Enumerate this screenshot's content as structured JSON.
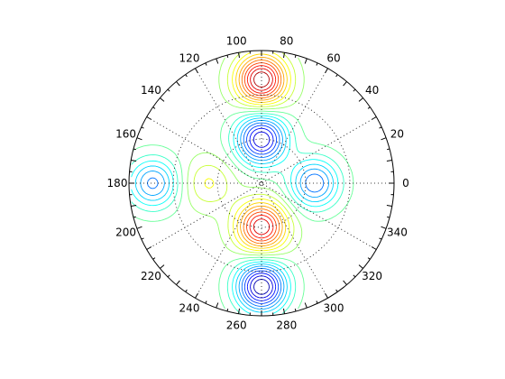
{
  "chart_data": {
    "type": "polar-contour",
    "title": "",
    "angle_unit": "degrees",
    "angle_labels": [
      "0",
      "20",
      "40",
      "60",
      "80",
      "100",
      "120",
      "140",
      "160",
      "180",
      "200",
      "220",
      "240",
      "260",
      "280",
      "300",
      "320",
      "340"
    ],
    "angle_values": [
      0,
      20,
      40,
      60,
      80,
      100,
      120,
      140,
      160,
      180,
      200,
      220,
      240,
      260,
      280,
      300,
      320,
      340
    ],
    "radial_gridlines": 2,
    "radial_labels": [],
    "grid": true,
    "grid_style": "dotted",
    "colormap": "jet",
    "contour_levels": 20,
    "features": [
      {
        "kind": "max",
        "r": 0.78,
        "theta": 90,
        "strength": 1.0
      },
      {
        "kind": "min",
        "r": 0.78,
        "theta": 270,
        "strength": -1.0
      },
      {
        "kind": "max",
        "r": 0.33,
        "theta": 270,
        "strength": 0.9
      },
      {
        "kind": "min",
        "r": 0.33,
        "theta": 90,
        "strength": -0.9
      },
      {
        "kind": "min",
        "r": 0.4,
        "theta": 0,
        "strength": -0.6
      },
      {
        "kind": "min",
        "r": 0.82,
        "theta": 180,
        "strength": -0.55
      },
      {
        "kind": "max",
        "r": 0.4,
        "theta": 180,
        "strength": 0.25
      }
    ]
  }
}
